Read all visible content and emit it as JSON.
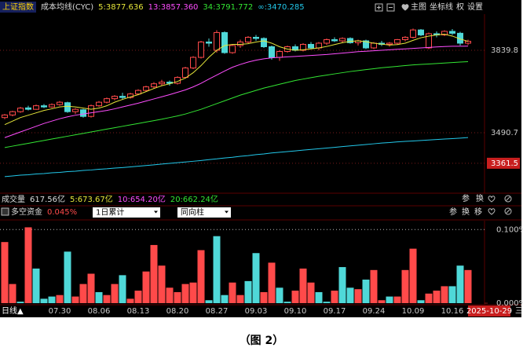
{
  "header": {
    "index_name": "上证指数",
    "toolbar": [
      "主图",
      "坐标线",
      "权",
      "设置"
    ]
  },
  "volume_header": {
    "title": "成交量",
    "value": "617.56亿",
    "series": [
      {
        "name": "5:673.67亿",
        "color": "#e6e63a"
      },
      {
        "name": "10:654.20亿",
        "color": "#ff4dff"
      },
      {
        "name": "20:662.24亿",
        "color": "#33e633"
      }
    ],
    "tools": [
      "参",
      "换"
    ]
  },
  "fund_header": {
    "tools": [
      "参",
      "换",
      "移"
    ],
    "controls": [
      "1日累计",
      "同向柱"
    ]
  },
  "footer": {
    "period": "日线▲",
    "date": "2025-10-29",
    "menu": "三"
  },
  "caption": "（图 2）",
  "chart_data": [
    {
      "type": "candlestick",
      "subtitle": "成本均线(CYC)",
      "up_color": "#ff4a4a",
      "down_color": "#4fd8d8",
      "open": [
        3555,
        3566,
        3580,
        3596,
        3590,
        3605,
        3600,
        3610,
        3618,
        3580,
        3588,
        3560,
        3605,
        3620,
        3635,
        3645,
        3640,
        3655,
        3670,
        3685,
        3698,
        3705,
        3700,
        3725,
        3765,
        3810,
        3875,
        3840,
        3915,
        3830,
        3860,
        3875,
        3895,
        3890,
        3855,
        3810,
        3835,
        3855,
        3840,
        3865,
        3850,
        3870,
        3885,
        3880,
        3890,
        3872,
        3880,
        3850,
        3870,
        3865,
        3870,
        3885,
        3895,
        3926,
        3850,
        3910,
        3905,
        3920,
        3912,
        3870
      ],
      "high": [
        3570,
        3584,
        3600,
        3605,
        3610,
        3612,
        3615,
        3625,
        3622,
        3595,
        3592,
        3610,
        3625,
        3640,
        3650,
        3660,
        3660,
        3675,
        3690,
        3705,
        3715,
        3712,
        3730,
        3770,
        3815,
        3880,
        3890,
        3925,
        3920,
        3865,
        3885,
        3900,
        3905,
        3895,
        3860,
        3840,
        3860,
        3865,
        3870,
        3875,
        3875,
        3890,
        3895,
        3895,
        3895,
        3885,
        3885,
        3875,
        3880,
        3875,
        3888,
        3900,
        3932,
        3930,
        3915,
        3920,
        3925,
        3930,
        3918,
        3885
      ],
      "low": [
        3548,
        3560,
        3575,
        3585,
        3588,
        3595,
        3596,
        3605,
        3575,
        3570,
        3555,
        3555,
        3600,
        3615,
        3628,
        3630,
        3635,
        3650,
        3665,
        3678,
        3690,
        3690,
        3695,
        3720,
        3760,
        3805,
        3855,
        3830,
        3825,
        3825,
        3850,
        3870,
        3880,
        3850,
        3800,
        3795,
        3830,
        3835,
        3835,
        3845,
        3840,
        3862,
        3875,
        3870,
        3868,
        3860,
        3845,
        3845,
        3858,
        3855,
        3865,
        3878,
        3890,
        3900,
        3845,
        3895,
        3900,
        3905,
        3860,
        3862
      ],
      "close": [
        3566,
        3580,
        3595,
        3590,
        3605,
        3600,
        3610,
        3620,
        3580,
        3590,
        3560,
        3605,
        3620,
        3635,
        3645,
        3640,
        3655,
        3670,
        3685,
        3698,
        3705,
        3700,
        3725,
        3765,
        3810,
        3875,
        3870,
        3915,
        3830,
        3860,
        3875,
        3895,
        3890,
        3855,
        3810,
        3835,
        3855,
        3840,
        3865,
        3850,
        3870,
        3885,
        3880,
        3890,
        3872,
        3880,
        3850,
        3870,
        3865,
        3870,
        3885,
        3895,
        3926,
        3905,
        3910,
        3905,
        3920,
        3912,
        3870,
        3878
      ],
      "series": [
        {
          "name": "5:3877.636",
          "color": "#e6e63a",
          "values": [
            3525,
            3540,
            3555,
            3565,
            3575,
            3585,
            3592,
            3600,
            3603,
            3600,
            3595,
            3590,
            3595,
            3605,
            3620,
            3632,
            3642,
            3652,
            3665,
            3678,
            3690,
            3698,
            3708,
            3722,
            3745,
            3775,
            3810,
            3840,
            3860,
            3865,
            3865,
            3868,
            3875,
            3880,
            3870,
            3855,
            3845,
            3840,
            3842,
            3846,
            3850,
            3856,
            3864,
            3872,
            3878,
            3880,
            3876,
            3870,
            3866,
            3862,
            3864,
            3870,
            3882,
            3893,
            3900,
            3905,
            3908,
            3900,
            3888,
            3877.636
          ]
        },
        {
          "name": "13:3857.360",
          "color": "#ff4dff",
          "values": [
            3470,
            3482,
            3494,
            3506,
            3518,
            3530,
            3540,
            3550,
            3558,
            3565,
            3570,
            3575,
            3580,
            3585,
            3592,
            3600,
            3608,
            3616,
            3625,
            3634,
            3643,
            3652,
            3662,
            3672,
            3685,
            3700,
            3718,
            3735,
            3752,
            3768,
            3780,
            3790,
            3798,
            3804,
            3808,
            3810,
            3812,
            3814,
            3816,
            3818,
            3820,
            3822,
            3825,
            3828,
            3831,
            3834,
            3836,
            3838,
            3840,
            3842,
            3844,
            3846,
            3848,
            3850,
            3852,
            3854,
            3856,
            3857,
            3857,
            3857.36
          ]
        },
        {
          "name": "34:3791.772",
          "color": "#33e633",
          "values": [
            3428,
            3434,
            3440,
            3446,
            3452,
            3458,
            3464,
            3470,
            3476,
            3482,
            3488,
            3494,
            3500,
            3506,
            3512,
            3518,
            3524,
            3530,
            3536,
            3542,
            3548,
            3555,
            3562,
            3570,
            3580,
            3590,
            3602,
            3614,
            3626,
            3638,
            3650,
            3660,
            3670,
            3680,
            3688,
            3696,
            3704,
            3712,
            3718,
            3724,
            3730,
            3735,
            3740,
            3745,
            3750,
            3754,
            3758,
            3762,
            3766,
            3769,
            3772,
            3775,
            3778,
            3780,
            3782,
            3784,
            3786,
            3788,
            3790,
            3791.772
          ]
        },
        {
          "name": "∞:3470.285",
          "color": "#22c8ea",
          "values": [
            3305,
            3308,
            3311,
            3313,
            3316,
            3318,
            3321,
            3323,
            3326,
            3328,
            3331,
            3333,
            3336,
            3338,
            3341,
            3343,
            3346,
            3349,
            3352,
            3355,
            3358,
            3361,
            3364,
            3367,
            3370,
            3373,
            3377,
            3380,
            3384,
            3387,
            3391,
            3394,
            3398,
            3401,
            3405,
            3408,
            3411,
            3414,
            3417,
            3420,
            3423,
            3426,
            3429,
            3432,
            3435,
            3438,
            3441,
            3444,
            3447,
            3449,
            3452,
            3454,
            3456,
            3458,
            3460,
            3462,
            3464,
            3466,
            3468,
            3470.285
          ]
        }
      ],
      "ylim": [
        3238,
        3993
      ],
      "yticks": [
        3361.5,
        3490.7,
        3839.8
      ]
    },
    {
      "type": "bar",
      "title": "多空资金",
      "subtitle": "0.045%",
      "categories": [
        null,
        null,
        null,
        null,
        null,
        null,
        null,
        "07.30",
        null,
        null,
        null,
        null,
        "08.06",
        null,
        null,
        null,
        null,
        "08.13",
        null,
        null,
        null,
        null,
        "08.20",
        null,
        null,
        null,
        null,
        "08.27",
        null,
        null,
        null,
        null,
        "09.03",
        null,
        null,
        null,
        null,
        "09.10",
        null,
        null,
        null,
        null,
        "09.17",
        null,
        null,
        null,
        null,
        "09.24",
        null,
        null,
        null,
        null,
        "10.09",
        null,
        null,
        null,
        null,
        "10.16",
        null,
        null
      ],
      "series": [
        {
          "color": "#ff4a4a",
          "values": [
            0.083,
            0.026,
            null,
            0.103,
            null,
            null,
            null,
            0.011,
            null,
            0.009,
            0.026,
            0.04,
            null,
            0.011,
            0.026,
            null,
            0.006,
            0.017,
            0.043,
            0.079,
            0.051,
            0.021,
            0.015,
            0.026,
            0.028,
            0.072,
            null,
            null,
            null,
            0.028,
            0.011,
            null,
            null,
            0.015,
            0.055,
            null,
            null,
            0.017,
            0.047,
            0.028,
            null,
            null,
            0.017,
            null,
            null,
            0.019,
            null,
            0.045,
            0.004,
            null,
            0.009,
            0.045,
            0.074,
            null,
            0.013,
            0.017,
            0.023,
            null,
            null,
            0.045
          ]
        },
        {
          "color": "#4fd8d8",
          "values": [
            null,
            null,
            0.002,
            null,
            0.047,
            0.006,
            0.009,
            null,
            0.07,
            null,
            null,
            null,
            0.015,
            null,
            null,
            0.038,
            null,
            null,
            null,
            null,
            null,
            null,
            null,
            null,
            null,
            null,
            0.004,
            0.091,
            0.011,
            null,
            null,
            0.03,
            0.068,
            null,
            null,
            0.021,
            0.002,
            null,
            null,
            null,
            0.015,
            0.002,
            null,
            0.049,
            0.021,
            null,
            0.032,
            null,
            null,
            0.009,
            null,
            null,
            null,
            0.004,
            null,
            null,
            null,
            0.023,
            0.051,
            null
          ]
        }
      ],
      "ylim": [
        0,
        0.112
      ],
      "yticks": [
        {
          "value": 0,
          "label": "0.000%"
        },
        {
          "value": 0.1,
          "label": "0.100%"
        }
      ]
    }
  ]
}
